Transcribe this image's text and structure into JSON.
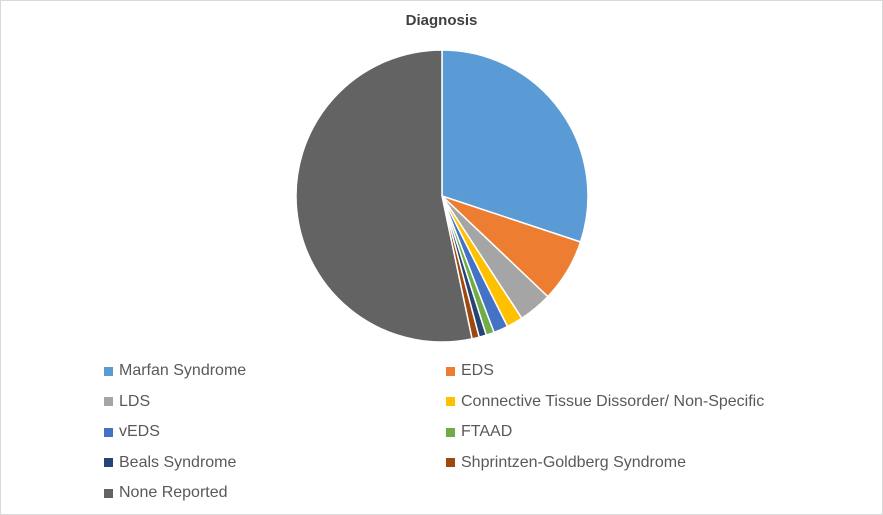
{
  "chart_data": {
    "type": "pie",
    "title": "Diagnosis",
    "legend_position": "bottom",
    "series": [
      {
        "categories": [
          "Marfan Syndrome",
          "EDS",
          "LDS",
          "Connective Tissue Dissorder/ Non-Specific",
          "vEDS",
          "FTAAD",
          "Beals Syndrome",
          "Shprintzen-Goldberg Syndrome",
          "None Reported"
        ],
        "values": [
          30.1,
          7.0,
          3.7,
          1.8,
          1.6,
          0.9,
          0.8,
          0.8,
          53.3
        ],
        "colors": [
          "#5b9bd5",
          "#ed7d31",
          "#a5a5a5",
          "#ffc000",
          "#4472c4",
          "#70ad47",
          "#264478",
          "#9e480e",
          "#636363"
        ]
      }
    ]
  }
}
